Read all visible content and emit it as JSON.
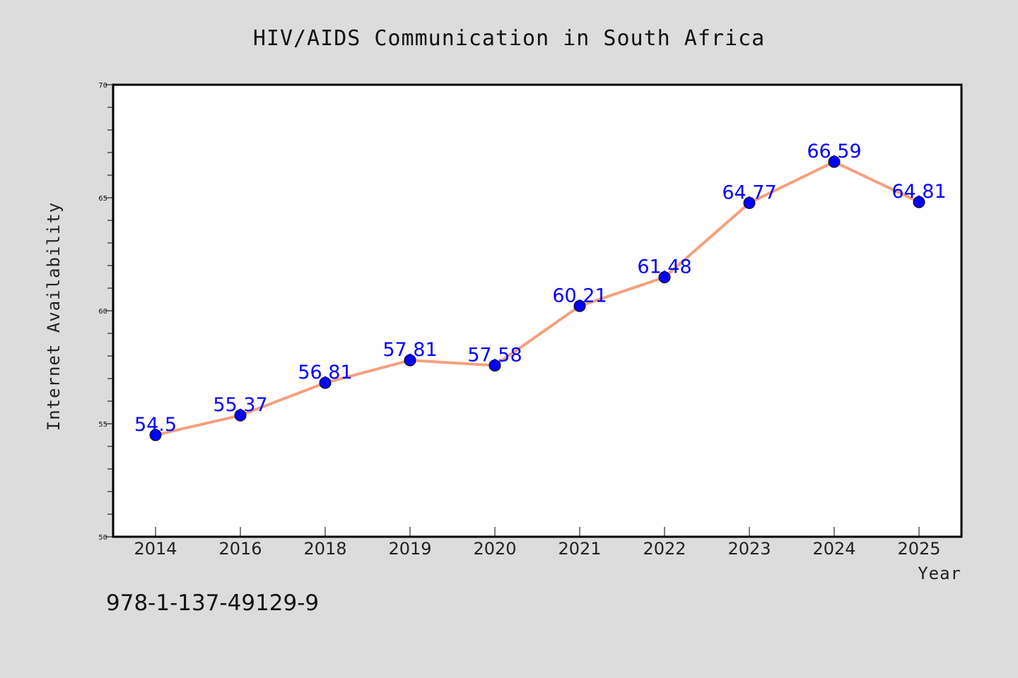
{
  "chart_data": {
    "type": "line",
    "title": "HIV/AIDS Communication in South Africa",
    "xlabel": "Year",
    "ylabel": "Internet Availability",
    "categories": [
      "2014",
      "2016",
      "2018",
      "2019",
      "2020",
      "2021",
      "2022",
      "2023",
      "2024",
      "2025"
    ],
    "series": [
      {
        "values": [
          54.5,
          55.37,
          56.81,
          57.81,
          57.58,
          60.21,
          61.48,
          64.77,
          66.59,
          64.81
        ],
        "data_labels": [
          "54.5",
          "55.37",
          "56.81",
          "57.81",
          "57.58",
          "60.21",
          "61.48",
          "64.77",
          "66.59",
          "64.81"
        ],
        "line_color": "#f4a07c",
        "marker_color": "#0000ff"
      }
    ],
    "ylim": [
      50,
      70
    ],
    "yticks": [
      50,
      55,
      60,
      65,
      70
    ],
    "ytick_labels": [
      "50",
      "55",
      "60",
      "65",
      "70"
    ],
    "grid": false,
    "legend": "none",
    "background_color": "#dcdcdc",
    "plot_background": "#ffffff"
  },
  "footer": {
    "code": "978-1-137-49129-9"
  }
}
